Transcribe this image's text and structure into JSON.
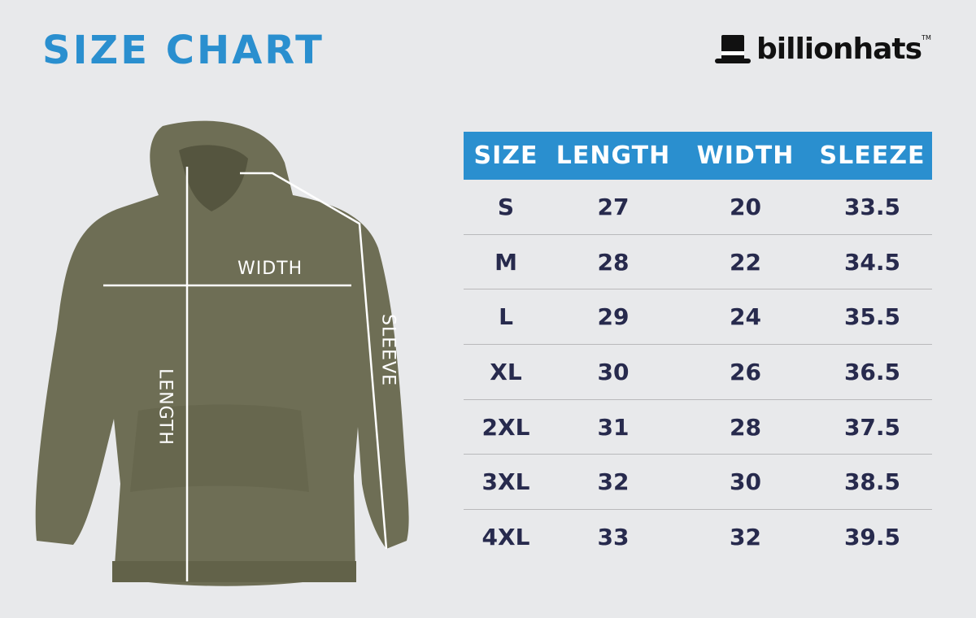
{
  "title": "SIZE CHART",
  "brand": {
    "name": "billionhats",
    "trademark": "TM"
  },
  "garment_labels": {
    "width": "WIDTH",
    "length": "LENGTH",
    "sleeve": "SLEEVE"
  },
  "colors": {
    "accent": "#2a8fcf",
    "text": "#272a4d",
    "garment": "#6e6e55",
    "background": "#e8e9eb"
  },
  "table": {
    "headers": [
      "SIZE",
      "LENGTH",
      "WIDTH",
      "SLEEZE"
    ],
    "rows": [
      [
        "S",
        "27",
        "20",
        "33.5"
      ],
      [
        "M",
        "28",
        "22",
        "34.5"
      ],
      [
        "L",
        "29",
        "24",
        "35.5"
      ],
      [
        "XL",
        "30",
        "26",
        "36.5"
      ],
      [
        "2XL",
        "31",
        "28",
        "37.5"
      ],
      [
        "3XL",
        "32",
        "30",
        "38.5"
      ],
      [
        "4XL",
        "33",
        "32",
        "39.5"
      ]
    ]
  }
}
